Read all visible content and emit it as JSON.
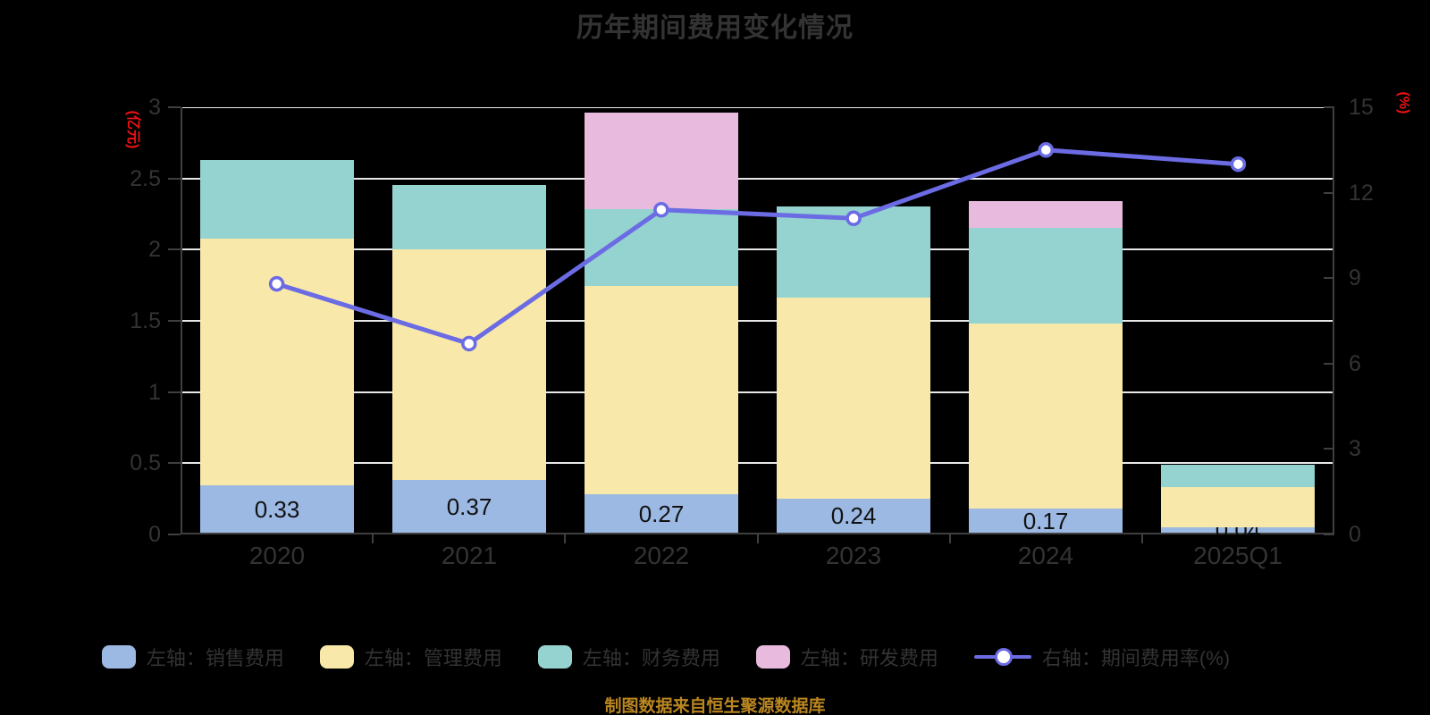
{
  "title": "历年期间费用变化情况",
  "source_note": "制图数据来自恒生聚源数据库",
  "left_axis": {
    "unit": "(亿元)",
    "min": 0,
    "max": 3,
    "ticks": [
      "3",
      "2.5",
      "2",
      "1.5",
      "1",
      "0.5",
      "0"
    ]
  },
  "right_axis": {
    "unit": "(%)",
    "min": 0,
    "max": 15,
    "ticks": [
      "15",
      "12",
      "9",
      "6",
      "3",
      "0"
    ]
  },
  "colors": {
    "background": "#000000",
    "text": "#333333",
    "grid": "#e8e8e8",
    "spine": "#3f3f3f",
    "axis_unit_red": "#ee1111",
    "source_gold": "#ba8620",
    "sales_blue": "#9cb9e3",
    "admin_yellow": "#f8e8a9",
    "finance_teal": "#94d3d0",
    "rd_pink": "#e7bade",
    "rate_line": "#6b6be4",
    "marker_fill": "#ffffff"
  },
  "chart_data": {
    "type": "bar",
    "subtype": "stacked-bars-with-line-dual-axis",
    "title": "历年期间费用变化情况",
    "xlabel": "",
    "ylabel_left": "(亿元)",
    "ylabel_right": "(%)",
    "ylim_left": [
      0,
      3
    ],
    "ylim_right": [
      0,
      15
    ],
    "grid": "horizontal-white-lines-at-left-axis-ticks",
    "legend_position": "bottom",
    "categories": [
      "2020",
      "2021",
      "2022",
      "2023",
      "2024",
      "2025Q1"
    ],
    "series": [
      {
        "key": "sales",
        "name": "左轴：销售费用",
        "type": "bar",
        "axis": "left",
        "color": "#9cb9e3",
        "values": [
          0.33,
          0.37,
          0.27,
          0.24,
          0.17,
          0.04
        ]
      },
      {
        "key": "admin",
        "name": "左轴：管理费用",
        "type": "bar",
        "axis": "left",
        "color": "#f8e8a9",
        "values": [
          1.73,
          1.62,
          1.46,
          1.41,
          1.3,
          0.28
        ]
      },
      {
        "key": "finance",
        "name": "左轴：财务费用",
        "type": "bar",
        "axis": "left",
        "color": "#94d3d0",
        "values": [
          0.55,
          0.45,
          0.54,
          0.64,
          0.67,
          0.16
        ]
      },
      {
        "key": "rd",
        "name": "左轴：研发费用",
        "type": "bar",
        "axis": "left",
        "color": "#e7bade",
        "values": [
          0,
          0,
          0.68,
          0,
          0.19,
          0
        ]
      },
      {
        "key": "rate",
        "name": "右轴：期间费用率(%)",
        "type": "line",
        "axis": "right",
        "color": "#6b6be4",
        "values": [
          8.8,
          6.7,
          11.4,
          11.1,
          13.5,
          13.0
        ]
      }
    ],
    "bar_totals": [
      2.61,
      2.44,
      2.95,
      2.29,
      2.33,
      0.48
    ],
    "bar_labels": [
      "0.33",
      "0.37",
      "0.27",
      "0.24",
      "0.17",
      "0.04"
    ]
  },
  "legend": {
    "items": [
      {
        "key": "sales",
        "label": "左轴：销售费用",
        "marker": "rounded-swatch",
        "color": "#9cb9e3"
      },
      {
        "key": "admin",
        "label": "左轴：管理费用",
        "marker": "rounded-swatch",
        "color": "#f8e8a9"
      },
      {
        "key": "finance",
        "label": "左轴：财务费用",
        "marker": "rounded-swatch",
        "color": "#94d3d0"
      },
      {
        "key": "rd",
        "label": "左轴：研发费用",
        "marker": "rounded-swatch",
        "color": "#e7bade"
      },
      {
        "key": "rate",
        "label": "右轴：期间费用率(%)",
        "marker": "line-with-circle",
        "color": "#6b6be4"
      }
    ]
  }
}
